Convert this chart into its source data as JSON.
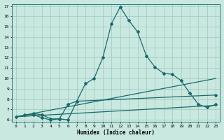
{
  "xlabel": "Humidex (Indice chaleur)",
  "bg_color": "#c8e8e0",
  "line_color": "#1a6b6b",
  "grid_color": "#a0c8c0",
  "xlim": [
    -0.5,
    23.5
  ],
  "ylim": [
    5.8,
    17.2
  ],
  "xticks": [
    0,
    1,
    2,
    3,
    4,
    5,
    6,
    7,
    8,
    9,
    10,
    11,
    12,
    13,
    14,
    15,
    16,
    17,
    18,
    19,
    20,
    21,
    22,
    23
  ],
  "yticks": [
    6,
    7,
    8,
    9,
    10,
    11,
    12,
    13,
    14,
    15,
    16,
    17
  ],
  "line1_x": [
    1,
    2,
    3,
    4,
    5,
    6,
    7,
    8,
    9,
    10,
    11,
    12,
    13,
    14,
    15,
    16,
    17,
    18,
    19,
    20,
    21,
    22,
    23
  ],
  "line1_y": [
    6.5,
    6.5,
    6.2,
    6.0,
    6.1,
    7.5,
    7.8,
    9.5,
    10.0,
    12.0,
    15.3,
    16.9,
    15.6,
    14.5,
    12.2,
    11.1,
    10.5,
    10.4,
    9.8,
    8.6,
    7.5,
    7.2,
    7.5
  ],
  "line2_x": [
    0,
    2,
    3,
    4,
    5,
    6,
    7,
    23
  ],
  "line2_y": [
    6.3,
    6.6,
    6.5,
    6.1,
    6.1,
    6.0,
    7.8,
    8.4
  ],
  "line3_x": [
    0,
    23
  ],
  "line3_y": [
    6.3,
    10.0
  ],
  "line4_x": [
    0,
    23
  ],
  "line4_y": [
    6.3,
    7.4
  ]
}
